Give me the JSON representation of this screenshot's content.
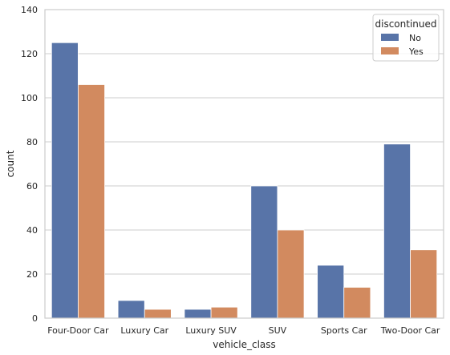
{
  "chart_data": {
    "type": "bar",
    "title": "",
    "xlabel": "vehicle_class",
    "ylabel": "count",
    "categories": [
      "Four-Door Car",
      "Luxury Car",
      "Luxury SUV",
      "SUV",
      "Sports Car",
      "Two-Door Car"
    ],
    "series": [
      {
        "name": "No",
        "color": "#5874a8",
        "values": [
          125,
          8,
          4,
          60,
          24,
          79
        ]
      },
      {
        "name": "Yes",
        "color": "#d28a5f",
        "values": [
          106,
          4,
          5,
          40,
          14,
          31
        ]
      }
    ],
    "ylim": [
      0,
      140
    ],
    "yticks": [
      0,
      20,
      40,
      60,
      80,
      100,
      120,
      140
    ],
    "grid": "horizontal",
    "legend": {
      "title": "discontinued",
      "placement": "top-right"
    }
  }
}
